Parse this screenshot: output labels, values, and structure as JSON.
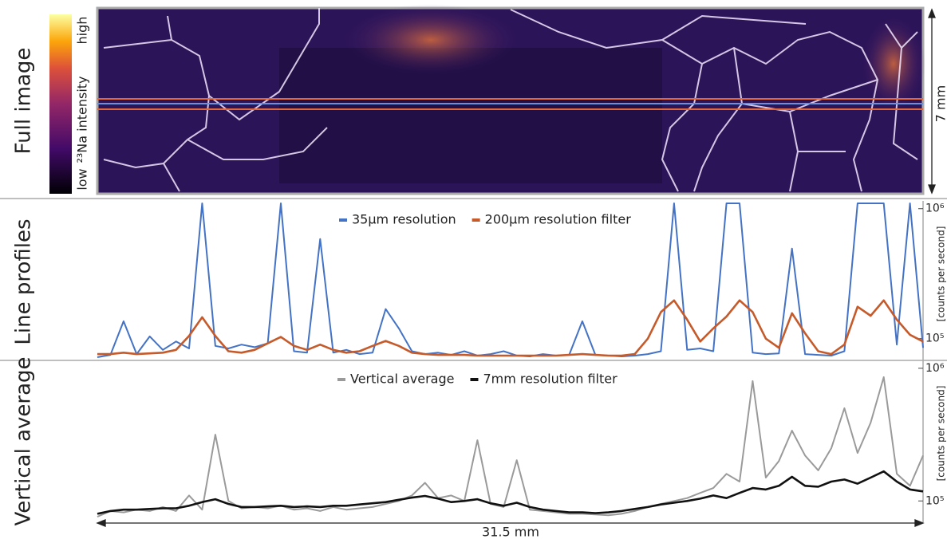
{
  "chart_data": [
    {
      "type": "heatmap",
      "panel_label": "Full image",
      "colorbar_label": "²³Na intensity",
      "colorbar_labels": [
        "low",
        "high"
      ],
      "height_label": "7 mm"
    },
    {
      "type": "line",
      "panel_label": "Line profiles",
      "ylabel": "[counts per second]",
      "log_y": true,
      "xlim": [
        0,
        31.5
      ],
      "ylim": [
        68000,
        1100000
      ],
      "yticks": [
        {
          "value": 100000,
          "label": "10⁵"
        },
        {
          "value": 1000000,
          "label": "10⁶"
        }
      ],
      "x": [
        0,
        0.5,
        1,
        1.5,
        2,
        2.5,
        3,
        3.5,
        4,
        4.5,
        5,
        5.5,
        6,
        6.5,
        7,
        7.5,
        8,
        8.5,
        9,
        9.5,
        10,
        10.5,
        11,
        11.5,
        12,
        12.5,
        13,
        13.5,
        14,
        14.5,
        15,
        15.5,
        16,
        16.5,
        17,
        17.5,
        18,
        18.5,
        19,
        19.5,
        20,
        20.5,
        21,
        21.5,
        22,
        22.5,
        23,
        23.5,
        24,
        24.5,
        25,
        25.5,
        26,
        26.5,
        27,
        27.5,
        28,
        28.5,
        29,
        29.5,
        30,
        30.5,
        31,
        31.5
      ],
      "series": [
        {
          "name": "35µm resolution",
          "color": "#4472c4",
          "values": [
            72000,
            75000,
            136000,
            76000,
            104000,
            82000,
            95000,
            84000,
            1100000,
            88000,
            84000,
            90000,
            86000,
            92000,
            1100000,
            80000,
            78000,
            585000,
            78000,
            82000,
            76000,
            78000,
            169000,
            120000,
            80000,
            76000,
            78000,
            75000,
            80000,
            74000,
            76000,
            80000,
            74000,
            73000,
            76000,
            74000,
            75000,
            136000,
            75000,
            74000,
            73000,
            74000,
            76000,
            80000,
            1100000,
            82000,
            84000,
            80000,
            1100000,
            1100000,
            78000,
            76000,
            77000,
            493000,
            76000,
            75000,
            74000,
            80000,
            1100000,
            1100000,
            1100000,
            90000,
            1100000,
            85000
          ]
        },
        {
          "name": "200µm resolution filter",
          "color": "#c55a2b",
          "values": [
            76000,
            76000,
            78000,
            76000,
            77000,
            78000,
            82000,
            105000,
            146000,
            105000,
            80000,
            78000,
            82000,
            92000,
            103000,
            88000,
            82000,
            90000,
            82000,
            78000,
            80000,
            88000,
            96000,
            88000,
            78000,
            76000,
            75000,
            75000,
            75000,
            74000,
            74000,
            74000,
            74000,
            74000,
            74000,
            74000,
            75000,
            76000,
            75000,
            74000,
            74000,
            76000,
            100000,
            160000,
            197000,
            140000,
            95000,
            120000,
            148000,
            197000,
            160000,
            100000,
            85000,
            157000,
            110000,
            80000,
            76000,
            90000,
            176000,
            150000,
            197000,
            140000,
            107000,
            95000
          ]
        }
      ]
    },
    {
      "type": "line",
      "panel_label": "Vertical average",
      "ylabel": "[counts per second]",
      "xlabel": "31.5 mm",
      "log_y": true,
      "xlim": [
        0,
        31.5
      ],
      "ylim": [
        72000,
        1100000
      ],
      "yticks": [
        {
          "value": 100000,
          "label": "10⁵"
        },
        {
          "value": 1000000,
          "label": "10⁶"
        }
      ],
      "x": [
        0,
        0.5,
        1,
        1.5,
        2,
        2.5,
        3,
        3.5,
        4,
        4.5,
        5,
        5.5,
        6,
        6.5,
        7,
        7.5,
        8,
        8.5,
        9,
        9.5,
        10,
        10.5,
        11,
        11.5,
        12,
        12.5,
        13,
        13.5,
        14,
        14.5,
        15,
        15.5,
        16,
        16.5,
        17,
        17.5,
        18,
        18.5,
        19,
        19.5,
        20,
        20.5,
        21,
        21.5,
        22,
        22.5,
        23,
        23.5,
        24,
        24.5,
        25,
        25.5,
        26,
        26.5,
        27,
        27.5,
        28,
        28.5,
        29,
        29.5,
        30,
        30.5,
        31,
        31.5
      ],
      "series": [
        {
          "name": "Vertical average",
          "color": "#9a9a9a",
          "values": [
            76000,
            84000,
            82000,
            86000,
            84000,
            90000,
            84000,
            110000,
            86000,
            316000,
            100000,
            88000,
            90000,
            88000,
            92000,
            86000,
            88000,
            84000,
            90000,
            86000,
            88000,
            90000,
            95000,
            100000,
            110000,
            137000,
            105000,
            110000,
            100000,
            287000,
            95000,
            90000,
            203000,
            86000,
            84000,
            82000,
            80000,
            80000,
            79000,
            78000,
            80000,
            84000,
            90000,
            95000,
            100000,
            105000,
            115000,
            125000,
            160000,
            140000,
            801000,
            150000,
            200000,
            339000,
            220000,
            170000,
            250000,
            500000,
            230000,
            389000,
            858000,
            160000,
            130000,
            220000
          ]
        },
        {
          "name": "7mm resolution filter",
          "color": "#111111",
          "values": [
            80000,
            84000,
            86000,
            86000,
            87000,
            88000,
            88000,
            92000,
            98000,
            103000,
            95000,
            90000,
            90000,
            91000,
            92000,
            90000,
            91000,
            90000,
            92000,
            92000,
            94000,
            96000,
            98000,
            102000,
            106000,
            109000,
            104000,
            98000,
            100000,
            103000,
            96000,
            92000,
            97000,
            90000,
            86000,
            84000,
            82000,
            82000,
            81000,
            82000,
            84000,
            87000,
            90000,
            94000,
            97000,
            100000,
            104000,
            110000,
            105000,
            115000,
            125000,
            122000,
            130000,
            152000,
            130000,
            128000,
            140000,
            145000,
            135000,
            150000,
            167000,
            140000,
            122000,
            118000
          ]
        }
      ]
    }
  ]
}
